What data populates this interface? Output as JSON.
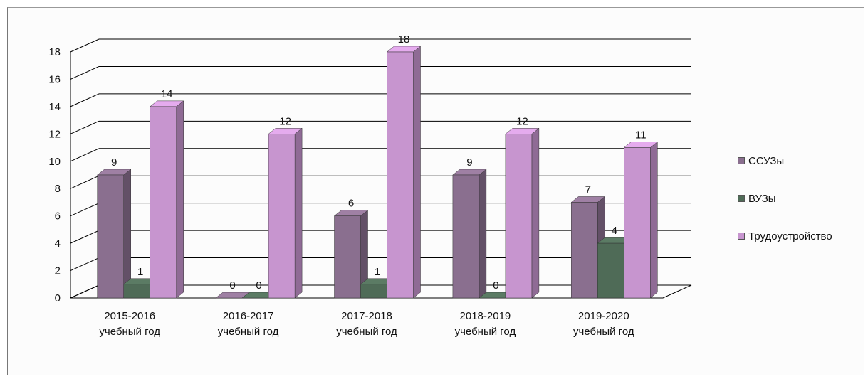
{
  "chart_data": {
    "type": "bar",
    "variant": "3d-clustered-column",
    "categories": [
      "2015-2016\nучебный год",
      "2016-2017\nучебный год",
      "2017-2018\nучебный год",
      "2018-2019\nучебный год",
      "2019-2020\nучебный год"
    ],
    "series": [
      {
        "name": "ССУЗы",
        "values": [
          9,
          0,
          6,
          9,
          7
        ],
        "color": "#8a6f8f"
      },
      {
        "name": "ВУЗы",
        "values": [
          1,
          0,
          1,
          0,
          4
        ],
        "color": "#4f6b57"
      },
      {
        "name": "Трудоустройство",
        "values": [
          14,
          12,
          18,
          12,
          11
        ],
        "color": "#c795cf"
      }
    ],
    "yticks": [
      0,
      2,
      4,
      6,
      8,
      10,
      12,
      14,
      16,
      18
    ],
    "ylim": [
      0,
      18
    ],
    "grid": true,
    "legend": "right",
    "title": "",
    "xlabel": "",
    "ylabel": ""
  }
}
